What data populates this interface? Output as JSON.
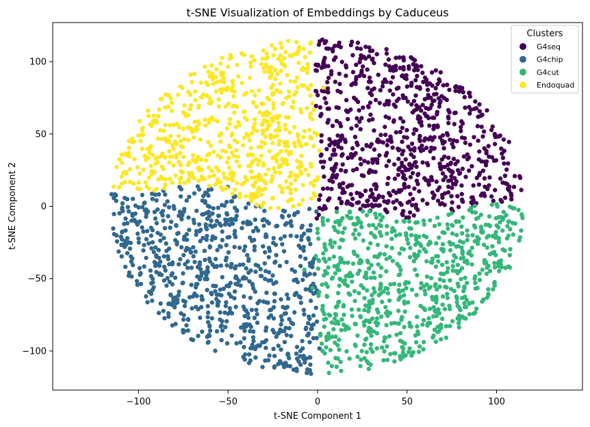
{
  "chart_data": {
    "type": "scatter",
    "title": "t-SNE Visualization of Embeddings by Caduceus",
    "xlabel": "t-SNE Component 1",
    "ylabel": "t-SNE Component 2",
    "xlim": [
      -148,
      148
    ],
    "ylim": [
      -127,
      127
    ],
    "xticks": [
      -100,
      -50,
      0,
      50,
      100
    ],
    "xtick_labels": [
      "−100",
      "−50",
      "0",
      "50",
      "100"
    ],
    "yticks": [
      -100,
      -50,
      0,
      50,
      100
    ],
    "ytick_labels": [
      "−100",
      "−50",
      "0",
      "50",
      "100"
    ],
    "grid": false,
    "legend": {
      "title": "Clusters",
      "position": "top-right"
    },
    "series": [
      {
        "name": "G4seq",
        "color": "#440154",
        "region": {
          "x_range": [
            0,
            117
          ],
          "y_range": [
            -10,
            116
          ],
          "center": [
            48,
            58
          ]
        }
      },
      {
        "name": "G4chip",
        "color": "#31688e",
        "region": {
          "x_range": [
            -125,
            0
          ],
          "y_range": [
            -115,
            18
          ],
          "center": [
            -50,
            -42
          ]
        }
      },
      {
        "name": "G4cut",
        "color": "#35b779",
        "region": {
          "x_range": [
            0,
            117
          ],
          "y_range": [
            -115,
            10
          ],
          "center": [
            50,
            -48
          ]
        }
      },
      {
        "name": "Endoquad",
        "color": "#fde725",
        "region": {
          "x_range": [
            -112,
            2
          ],
          "y_range": [
            -5,
            114
          ],
          "center": [
            -42,
            55
          ]
        }
      }
    ]
  }
}
